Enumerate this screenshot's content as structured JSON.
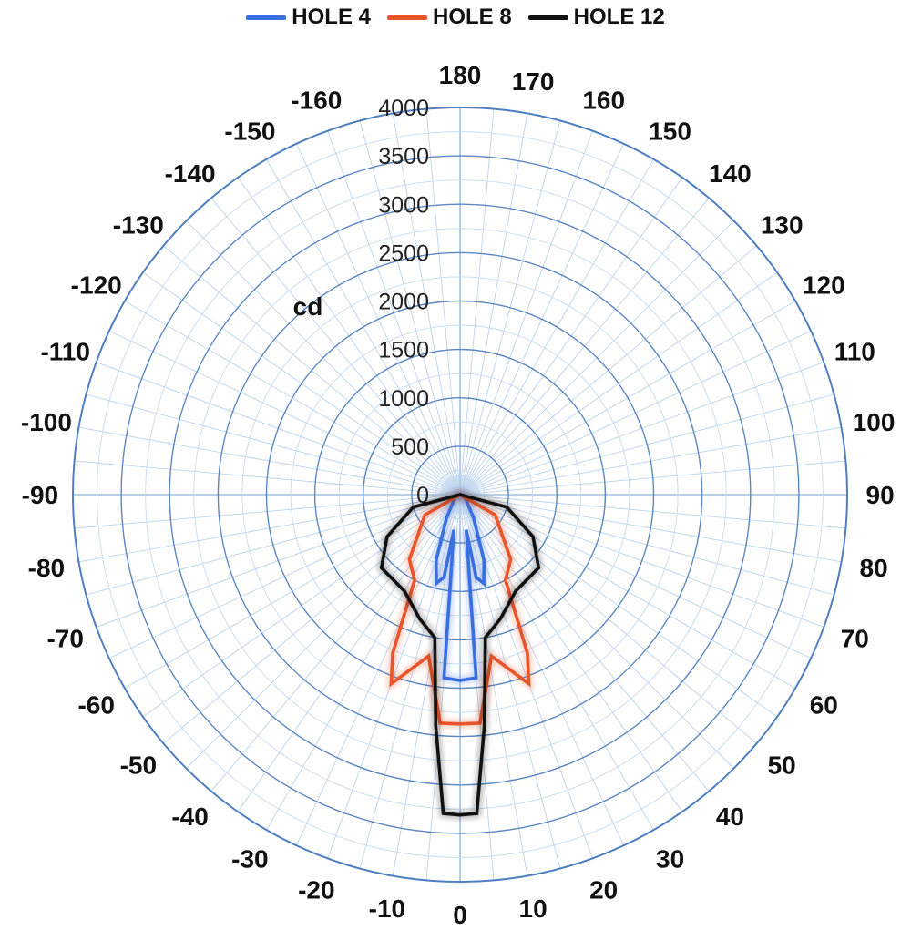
{
  "chart_data": {
    "type": "polar-line",
    "unit_label": "cd",
    "radial_range": [
      0,
      4000
    ],
    "radial_ticks": [
      "0",
      "500",
      "1000",
      "1500",
      "2000",
      "2500",
      "3000",
      "3500",
      "4000"
    ],
    "angle_labels": [
      "0",
      "10",
      "20",
      "30",
      "40",
      "50",
      "60",
      "70",
      "80",
      "90",
      "100",
      "110",
      "120",
      "130",
      "140",
      "150",
      "160",
      "170",
      "180",
      "-160",
      "-150",
      "-140",
      "-130",
      "-120",
      "-110",
      "-100",
      "-90",
      "-80",
      "-70",
      "-60",
      "-50",
      "-40",
      "-30",
      "-20",
      "-10"
    ],
    "legend_position": "top-center",
    "grid": true,
    "series": [
      {
        "name": "HOLE 4",
        "color": "#3a6fe0",
        "points": [
          [
            -10,
            370
          ],
          [
            -5,
            1900
          ],
          [
            0,
            1920
          ],
          [
            5,
            1900
          ],
          [
            10,
            370
          ],
          [
            11,
            870
          ],
          [
            15,
            950
          ],
          [
            20,
            720
          ],
          [
            30,
            280
          ],
          [
            60,
            60
          ],
          [
            90,
            0
          ],
          [
            270,
            0
          ],
          [
            300,
            60
          ],
          [
            330,
            280
          ],
          [
            340,
            720
          ],
          [
            345,
            950
          ],
          [
            349,
            870
          ],
          [
            350,
            370
          ],
          [
            355,
            1900
          ]
        ]
      },
      {
        "name": "HOLE 8",
        "color": "#e8552a",
        "points": [
          [
            -5,
            2370
          ],
          [
            0,
            2370
          ],
          [
            5,
            2370
          ],
          [
            11,
            1700
          ],
          [
            20,
            2080
          ],
          [
            23,
            1780
          ],
          [
            28,
            1000
          ],
          [
            38,
            850
          ],
          [
            60,
            420
          ],
          [
            90,
            0
          ],
          [
            270,
            0
          ],
          [
            300,
            420
          ],
          [
            322,
            850
          ],
          [
            332,
            1000
          ],
          [
            337,
            1780
          ],
          [
            340,
            2080
          ],
          [
            349,
            1700
          ],
          [
            355,
            2370
          ]
        ]
      },
      {
        "name": "HOLE 12",
        "color": "#111111",
        "points": [
          [
            -3,
            3300
          ],
          [
            0,
            3310
          ],
          [
            3,
            3300
          ],
          [
            6,
            2400
          ],
          [
            10,
            1500
          ],
          [
            18,
            1350
          ],
          [
            30,
            1150
          ],
          [
            47,
            1110
          ],
          [
            60,
            870
          ],
          [
            75,
            500
          ],
          [
            90,
            0
          ],
          [
            270,
            0
          ],
          [
            285,
            500
          ],
          [
            300,
            870
          ],
          [
            313,
            1110
          ],
          [
            330,
            1150
          ],
          [
            342,
            1350
          ],
          [
            350,
            1500
          ],
          [
            354,
            2400
          ],
          [
            357,
            3300
          ]
        ]
      }
    ]
  }
}
